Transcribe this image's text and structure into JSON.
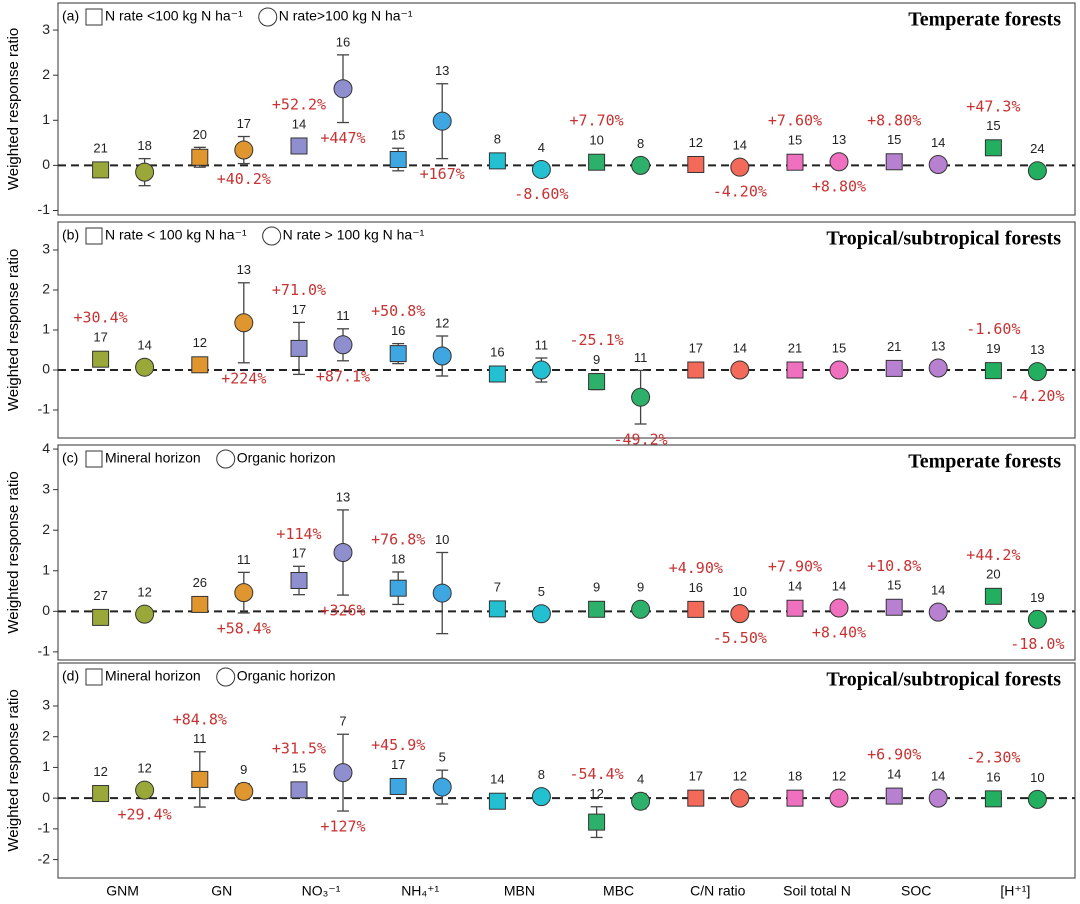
{
  "categories": [
    "GNM",
    "GN",
    "NO₃⁻¹",
    "NH₄⁺¹",
    "MBN",
    "MBC",
    "C/N ratio",
    "Soil total N",
    "SOC",
    "[H⁺¹]"
  ],
  "category_colors": [
    "#9aa83a",
    "#e0962e",
    "#8f8fd0",
    "#3ea6e0",
    "#22c0d0",
    "#2db06a",
    "#f46a5a",
    "#f070c0",
    "#b880d0",
    "#22b060"
  ],
  "chart_data": [
    {
      "type": "dot",
      "panel_label": "(a)",
      "title": "Temperate forests",
      "ylabel": "Weighted response ratio",
      "ylim": [
        -1.1,
        3.6
      ],
      "yticks": [
        -1,
        0,
        1,
        2,
        3
      ],
      "series": [
        {
          "name": "N rate <100 kg N ha⁻¹",
          "marker": "square",
          "values": [
            -0.1,
            0.18,
            0.43,
            0.13,
            0.1,
            0.07,
            0.02,
            0.07,
            0.08,
            0.39
          ],
          "errors": [
            null,
            0.22,
            null,
            0.25,
            null,
            null,
            null,
            null,
            null,
            null
          ],
          "counts": [
            21,
            20,
            14,
            15,
            8,
            10,
            12,
            15,
            15,
            15
          ],
          "annotations": [
            null,
            null,
            "+52.2%",
            null,
            null,
            "+7.70%",
            null,
            "+7.60%",
            "+8.80%",
            "+47.3%"
          ]
        },
        {
          "name": "N rate>100 kg N ha⁻¹",
          "marker": "circle",
          "values": [
            -0.15,
            0.34,
            1.7,
            0.98,
            -0.09,
            0.0,
            -0.04,
            0.08,
            0.02,
            -0.12
          ],
          "errors": [
            0.3,
            0.3,
            0.75,
            0.83,
            null,
            null,
            null,
            null,
            null,
            null
          ],
          "counts": [
            18,
            17,
            16,
            13,
            4,
            8,
            14,
            13,
            14,
            24
          ],
          "annotations": [
            null,
            "+40.2%",
            "+447%",
            "+167%",
            "-8.60%",
            null,
            "-4.20%",
            "+8.80%",
            null,
            null
          ]
        }
      ]
    },
    {
      "type": "dot",
      "panel_label": "(b)",
      "title": "Tropical/subtropical forests",
      "ylabel": "Weighted response ratio",
      "ylim": [
        -1.7,
        3.7
      ],
      "yticks": [
        -1,
        0,
        1,
        2,
        3
      ],
      "series": [
        {
          "name": "N rate < 100 kg N ha⁻¹",
          "marker": "square",
          "values": [
            0.27,
            0.13,
            0.54,
            0.41,
            -0.1,
            -0.29,
            0.0,
            0.0,
            0.04,
            -0.016
          ],
          "errors": [
            null,
            0.1,
            0.65,
            0.25,
            null,
            0.2,
            null,
            null,
            null,
            null
          ],
          "counts": [
            17,
            12,
            17,
            16,
            16,
            9,
            17,
            21,
            21,
            19
          ],
          "annotations": [
            "+30.4%",
            null,
            "+71.0%",
            "+50.8%",
            null,
            "-25.1%",
            null,
            null,
            null,
            "-1.60%"
          ]
        },
        {
          "name": "N rate > 100 kg N ha⁻¹",
          "marker": "circle",
          "values": [
            0.07,
            1.18,
            0.63,
            0.35,
            0.0,
            -0.68,
            0.0,
            0.0,
            0.05,
            -0.04
          ],
          "errors": [
            0.1,
            1.0,
            0.4,
            0.5,
            0.3,
            0.67,
            null,
            null,
            null,
            null
          ],
          "counts": [
            14,
            13,
            11,
            12,
            11,
            11,
            14,
            15,
            13,
            13
          ],
          "annotations": [
            null,
            "+224%",
            "+87.1%",
            null,
            null,
            "-49.2%",
            null,
            null,
            null,
            "-4.20%"
          ]
        }
      ]
    },
    {
      "type": "dot",
      "panel_label": "(c)",
      "title": "Temperate forests",
      "ylabel": "Weighted response ratio",
      "ylim": [
        -1.2,
        4.1
      ],
      "yticks": [
        -1,
        0,
        1,
        2,
        3,
        4
      ],
      "series": [
        {
          "name": "Mineral horizon",
          "marker": "square",
          "values": [
            -0.15,
            0.17,
            0.76,
            0.57,
            0.06,
            0.05,
            0.048,
            0.076,
            0.1,
            0.37
          ],
          "errors": [
            null,
            0.1,
            0.35,
            0.4,
            null,
            null,
            null,
            null,
            null,
            null
          ],
          "counts": [
            27,
            26,
            17,
            18,
            7,
            9,
            16,
            14,
            15,
            20
          ],
          "annotations": [
            null,
            null,
            "+114%",
            "+76.8%",
            null,
            null,
            "+4.90%",
            "+7.90%",
            "+10.8%",
            "+44.2%"
          ]
        },
        {
          "name": "Organic horizon",
          "marker": "circle",
          "values": [
            -0.07,
            0.46,
            1.45,
            0.45,
            -0.06,
            0.05,
            -0.057,
            0.081,
            -0.02,
            -0.2
          ],
          "errors": [
            null,
            0.5,
            1.05,
            1.0,
            null,
            null,
            null,
            null,
            null,
            null
          ],
          "counts": [
            12,
            11,
            13,
            10,
            5,
            9,
            10,
            14,
            14,
            19
          ],
          "annotations": [
            null,
            "+58.4%",
            "+326%",
            null,
            null,
            null,
            "-5.50%",
            "+8.40%",
            null,
            "-18.0%"
          ]
        }
      ]
    },
    {
      "type": "dot",
      "panel_label": "(d)",
      "title": "Tropical/subtropical forests",
      "ylabel": "Weighted response ratio",
      "ylim": [
        -2.6,
        4.4
      ],
      "yticks": [
        -2,
        -1,
        0,
        1,
        2,
        3
      ],
      "series": [
        {
          "name": "Mineral horizon",
          "marker": "square",
          "values": [
            0.15,
            0.61,
            0.27,
            0.38,
            -0.1,
            -0.78,
            0.0,
            0.0,
            0.067,
            -0.023
          ],
          "errors": [
            null,
            0.9,
            null,
            0.15,
            0.2,
            0.5,
            null,
            null,
            null,
            null
          ],
          "counts": [
            12,
            11,
            15,
            17,
            14,
            12,
            17,
            18,
            14,
            16
          ],
          "annotations": [
            null,
            "+84.8%",
            "+31.5%",
            "+45.9%",
            null,
            "-54.4%",
            null,
            null,
            "+6.90%",
            "-2.30%"
          ]
        },
        {
          "name": "Organic horizon",
          "marker": "circle",
          "values": [
            0.26,
            0.22,
            0.83,
            0.36,
            0.05,
            -0.1,
            0.0,
            0.0,
            0.0,
            -0.04
          ],
          "errors": [
            null,
            0.25,
            1.25,
            0.55,
            0.15,
            0.25,
            null,
            null,
            null,
            null
          ],
          "counts": [
            12,
            9,
            7,
            5,
            8,
            4,
            12,
            12,
            14,
            10
          ],
          "annotations": [
            "+29.4%",
            null,
            "+127%",
            null,
            null,
            null,
            null,
            null,
            null,
            null
          ]
        }
      ]
    }
  ]
}
